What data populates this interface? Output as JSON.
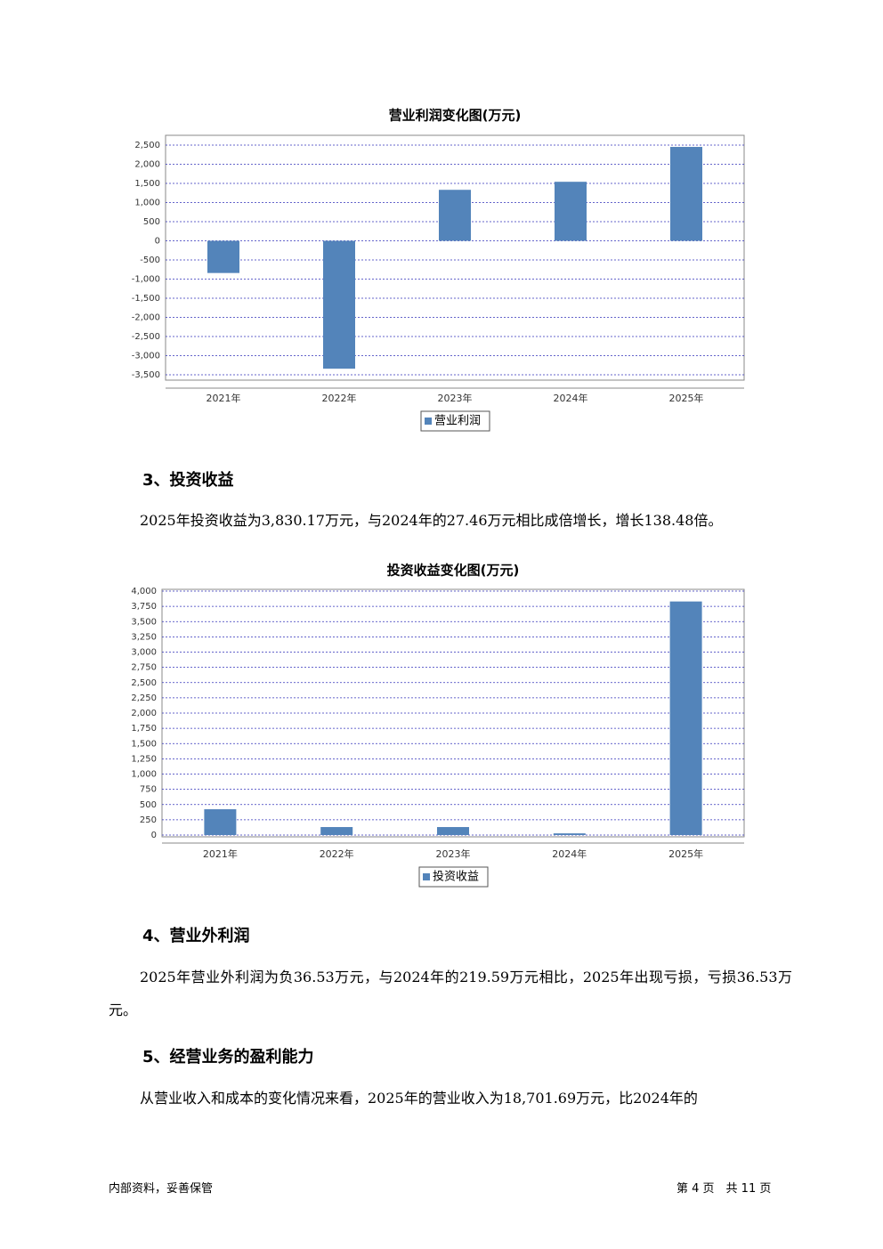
{
  "chart_data": [
    {
      "type": "bar",
      "title": "营业利润变化图(万元)",
      "categories": [
        "2021年",
        "2022年",
        "2023年",
        "2024年",
        "2025年"
      ],
      "series": [
        {
          "name": "营业利润",
          "color": "#5384ba",
          "values": [
            -841,
            -3341,
            1332,
            1542,
            2453
          ]
        }
      ],
      "ylim": [
        -3500,
        2500
      ],
      "yticks": [
        {
          "value": -3500,
          "label": "-3,500"
        },
        {
          "value": -3000,
          "label": "-3,000"
        },
        {
          "value": -2500,
          "label": "-2,500"
        },
        {
          "value": -2000,
          "label": "-2,000"
        },
        {
          "value": -1500,
          "label": "-1,500"
        },
        {
          "value": -1000,
          "label": "-1,000"
        },
        -500,
        0,
        500,
        {
          "value": 1000,
          "label": "1,000"
        },
        {
          "value": 1500,
          "label": "1,500"
        },
        {
          "value": 2000,
          "label": "2,000"
        },
        {
          "value": 2500,
          "label": "2,500"
        }
      ],
      "grid": true
    },
    {
      "type": "bar",
      "title": "投资收益变化图(万元)",
      "categories": [
        "2021年",
        "2022年",
        "2023年",
        "2024年",
        "2025年"
      ],
      "series": [
        {
          "name": "投资收益",
          "color": "#5384ba",
          "values": [
            423,
            131,
            131,
            27.46,
            3830.17
          ]
        }
      ],
      "ylim": [
        0,
        4000
      ],
      "yticks": [
        0,
        250,
        500,
        750,
        {
          "value": 1000,
          "label": "1,000"
        },
        {
          "value": 1250,
          "label": "1,250"
        },
        {
          "value": 1500,
          "label": "1,500"
        },
        {
          "value": 1750,
          "label": "1,750"
        },
        {
          "value": 2000,
          "label": "2,000"
        },
        {
          "value": 2250,
          "label": "2,250"
        },
        {
          "value": 2500,
          "label": "2,500"
        },
        {
          "value": 2750,
          "label": "2,750"
        },
        {
          "value": 3000,
          "label": "3,000"
        },
        {
          "value": 3250,
          "label": "3,250"
        },
        {
          "value": 3500,
          "label": "3,500"
        },
        {
          "value": 3750,
          "label": "3,750"
        },
        {
          "value": 4000,
          "label": "4,000"
        }
      ],
      "grid": true
    }
  ],
  "sections": [
    {
      "heading": "3、投资收益",
      "paragraph": "2025年投资收益为3,830.17万元，与2024年的27.46万元相比成倍增长，增长138.48倍。"
    },
    {
      "heading": "4、营业外利润",
      "paragraph": "2025年营业外利润为负36.53万元，与2024年的219.59万元相比，2025年出现亏损，亏损36.53万元。"
    },
    {
      "heading": "5、经营业务的盈利能力",
      "paragraph": "从营业收入和成本的变化情况来看，2025年的营业收入为18,701.69万元，比2024年的"
    }
  ],
  "footer": {
    "left": "内部资料，妥善保管",
    "right": "第 4 页　共 11 页"
  }
}
